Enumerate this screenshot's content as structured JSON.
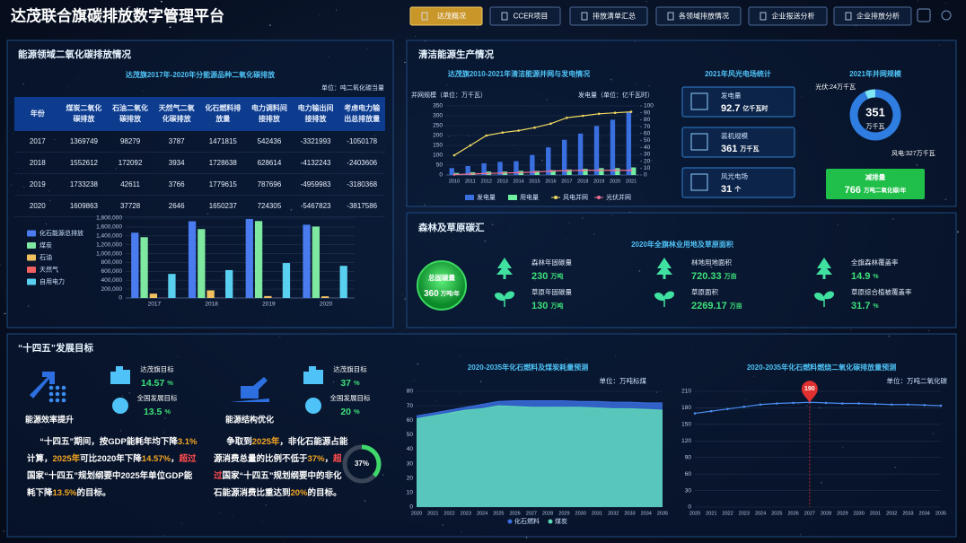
{
  "header": {
    "title": "达茂联合旗碳排放数字管理平台",
    "nav": [
      "达茂概况",
      "CCER项目",
      "排放清单汇总",
      "各领域排放情况",
      "企业报送分析",
      "企业排放分析"
    ]
  },
  "energy": {
    "title": "能源领域二氧化碳排放情况",
    "table": {
      "title": "达茂旗2017年-2020年分能源品种二氧化碳排放",
      "unit": "单位：吨二氧化碳当量",
      "columns": [
        "年份",
        "煤炭二氧化碳排放",
        "石油二氧化碳排放",
        "天然气二氧化碳排放",
        "化石燃料排放量",
        "电力调料间接排放",
        "电力输出间接排放",
        "考虑电力输出总排放量"
      ],
      "rows": [
        [
          2017,
          1369749,
          98279,
          3787,
          1471815,
          542436,
          -3321993,
          -1050178
        ],
        [
          2018,
          1552612,
          172092,
          3934,
          1728638,
          628614,
          -4132243,
          -2403606
        ],
        [
          2019,
          1733238,
          42611,
          3766,
          1779615,
          787696,
          -4959983,
          -3180368
        ],
        [
          2020,
          1609863,
          37728,
          2646,
          1650237,
          724305,
          -5467823,
          -3817586
        ]
      ]
    }
  },
  "clean": {
    "title": "清洁能源生产情况",
    "wind": {
      "title": "2021年风光电场统计",
      "items": [
        {
          "label": "发电量",
          "value": 92.7,
          "unit": "亿千瓦时"
        },
        {
          "label": "装机规模",
          "value": 361,
          "unit": "万千瓦"
        },
        {
          "label": "风光电场",
          "value": 31,
          "unit": "个"
        }
      ]
    },
    "reduction": {
      "label": "减排量",
      "value": 766,
      "unit": "万吨二氧化碳/年"
    }
  },
  "forest": {
    "title": "森林及草原碳汇",
    "subtitle": "2020年全旗林业用地及草原面积",
    "total": {
      "label": "总固碳量",
      "value": 360,
      "unit": "万吨/年"
    },
    "items": [
      {
        "label": "森林年固碳量",
        "value": 230,
        "unit": "万吨"
      },
      {
        "label": "林地用地面积",
        "value": 720.33,
        "unit": "万亩"
      },
      {
        "label": "全旗森林覆盖率",
        "value": 14.9,
        "unit": "%"
      },
      {
        "label": "草原年固碳量",
        "value": 130,
        "unit": "万吨"
      },
      {
        "label": "草原面积",
        "value": 2269.17,
        "unit": "万亩"
      },
      {
        "label": "草原综合植被覆盖率",
        "value": 31.7,
        "unit": "%"
      }
    ]
  },
  "goals": {
    "title": "“十四五”发展目标",
    "blocks": [
      {
        "name": "能源效率提升",
        "targets": [
          {
            "label": "达茂旗目标",
            "value": 14.57,
            "unit": "%"
          },
          {
            "label": "全国发展目标",
            "value": 13.5,
            "unit": "%"
          }
        ],
        "text": [
          {
            "text": "“十四五”期间，按GDP能耗年均下降",
            "color": "#ffffff"
          },
          {
            "text": "3.1%",
            "color": "#f5a623"
          },
          {
            "text": "计算，",
            "color": "#ffffff"
          },
          {
            "text": "2025年",
            "color": "#f5a623"
          },
          {
            "text": "可比2020年下降",
            "color": "#ffffff"
          },
          {
            "text": "14.57%",
            "color": "#f5a623"
          },
          {
            "text": "，",
            "color": "#ffffff"
          },
          {
            "text": "超过",
            "color": "#ff4d4f"
          },
          {
            "text": "国家“十四五”规划纲要中2025年单位GDP能耗下降",
            "color": "#ffffff"
          },
          {
            "text": "13.5%",
            "color": "#f5a623"
          },
          {
            "text": "的目标。",
            "color": "#ffffff"
          }
        ]
      },
      {
        "name": "能源结构优化",
        "targets": [
          {
            "label": "达茂旗目标",
            "value": 37,
            "unit": "%"
          },
          {
            "label": "全国发展目标",
            "value": 20,
            "unit": "%"
          }
        ],
        "text": [
          {
            "text": "争取到",
            "color": "#ffffff"
          },
          {
            "text": "2025年",
            "color": "#f5a623"
          },
          {
            "text": "，非化石能源占能源消费总量的比例不低于",
            "color": "#ffffff"
          },
          {
            "text": "37%",
            "color": "#f5a623"
          },
          {
            "text": "，",
            "color": "#ffffff"
          },
          {
            "text": "超过",
            "color": "#ff4d4f"
          },
          {
            "text": "国家“十四五”规划纲要中的非化石能源消费比重达到",
            "color": "#ffffff"
          },
          {
            "text": "20%",
            "color": "#f5a623"
          },
          {
            "text": "的目标。",
            "color": "#ffffff"
          }
        ]
      }
    ]
  },
  "chart_data": [
    {
      "type": "bar",
      "categories": [
        "2017",
        "2018",
        "2019",
        "2020"
      ],
      "ylim": [
        0,
        1800000
      ],
      "yticks": [
        0,
        {
          "value": 200000,
          "label": "200,000"
        },
        {
          "value": 400000,
          "label": "400,000"
        },
        {
          "value": 600000,
          "label": "600,000"
        },
        {
          "value": 800000,
          "label": "800,000"
        },
        {
          "value": 1000000,
          "label": "1,000,000"
        },
        {
          "value": 1200000,
          "label": "1,200,000"
        },
        {
          "value": 1400000,
          "label": "1,400,000"
        },
        {
          "value": 1600000,
          "label": "1,600,000"
        },
        {
          "value": 1800000,
          "label": "1,800,000"
        }
      ],
      "series": [
        {
          "name": "化石能源总排放",
          "color": "#4a7cf0",
          "values": [
            1471815,
            1728638,
            1779615,
            1650237
          ]
        },
        {
          "name": "煤炭",
          "color": "#7ee8a0",
          "values": [
            1369749,
            1552612,
            1733238,
            1609863
          ]
        },
        {
          "name": "石油",
          "color": "#f0c060",
          "values": [
            98279,
            172092,
            42611,
            37728
          ]
        },
        {
          "name": "天然气",
          "color": "#f06060",
          "values": [
            3787,
            3934,
            3766,
            2646
          ]
        },
        {
          "name": "自用电力",
          "color": "#5ad0f0",
          "values": [
            542436,
            628614,
            787696,
            724305
          ]
        }
      ]
    },
    {
      "type": "combo",
      "title": "达茂旗2010-2021年清洁能源并网与发电情况",
      "ylabel": "并网规模（单位：万千瓦）",
      "y2label": "发电量（单位：亿千瓦时）",
      "categories": [
        "2010",
        "2011",
        "2012",
        "2013",
        "2014",
        "2015",
        "2016",
        "2017",
        "2018",
        "2019",
        "2020",
        "2021"
      ],
      "ylim": [
        0,
        350
      ],
      "yticks": [
        0,
        50,
        100,
        150,
        200,
        250,
        300,
        350
      ],
      "y2lim": [
        0,
        100
      ],
      "y2ticks": [
        0,
        10,
        20,
        30,
        40,
        50,
        60,
        70,
        80,
        90,
        100
      ],
      "series": [
        {
          "name": "发电量",
          "type": "bar",
          "axis": "y2",
          "color": "#3a6fe0",
          "values": [
            10,
            13,
            17,
            19,
            20,
            29,
            40,
            51,
            60,
            71,
            80,
            91
          ]
        },
        {
          "name": "用电量",
          "type": "bar",
          "axis": "y2",
          "color": "#6ef0a0",
          "values": [
            3,
            4,
            5,
            5,
            6,
            6,
            7,
            8,
            9,
            10,
            10,
            11
          ]
        },
        {
          "name": "风电并网",
          "type": "line",
          "color": "#f0d860",
          "values": [
            100,
            150,
            200,
            215,
            225,
            240,
            260,
            290,
            300,
            310,
            315,
            320
          ]
        },
        {
          "name": "光伏并网",
          "type": "line",
          "color": "#f07090",
          "values": [
            2,
            5,
            8,
            10,
            12,
            15,
            20,
            22,
            24,
            24,
            24,
            24
          ]
        }
      ]
    },
    {
      "type": "pie",
      "title": "2021年并网规模",
      "center_value": 351,
      "center_unit": "万千瓦",
      "values": [
        24,
        327
      ],
      "value_labels": [
        "光伏:24万千瓦",
        "风电:327万千瓦"
      ],
      "colors": [
        "#7fe6f5",
        "#2f7de0"
      ]
    },
    {
      "type": "area",
      "title": "2020-2035年化石燃料及煤炭耗量预测",
      "unit": "单位：万吨标煤",
      "categories": [
        "2020",
        "2021",
        "2022",
        "2023",
        "2024",
        "2025",
        "2026",
        "2027",
        "2028",
        "2029",
        "2030",
        "2031",
        "2032",
        "2033",
        "2034",
        "2035"
      ],
      "ylim": [
        0,
        80
      ],
      "yticks": [
        0,
        10,
        20,
        30,
        40,
        50,
        60,
        70,
        80
      ],
      "series": [
        {
          "name": "化石燃料",
          "color": "#3a6fe0",
          "values": [
            63,
            65,
            67,
            69,
            71,
            73,
            73.5,
            73.5,
            73.5,
            73.5,
            73,
            73,
            72.5,
            72.5,
            72,
            72
          ]
        },
        {
          "name": "煤炭",
          "color": "#5fd8b8",
          "values": [
            61,
            63,
            65,
            67,
            68,
            70,
            69.5,
            69,
            69,
            69,
            69,
            68.5,
            68,
            68,
            67.5,
            67
          ]
        }
      ]
    },
    {
      "type": "line",
      "title": "2020-2035年化石燃料燃烧二氧化碳排放量预测",
      "unit": "单位：万吨二氧化碳",
      "categories": [
        "2020",
        "2021",
        "2022",
        "2023",
        "2024",
        "2025",
        "2026",
        "2027",
        "2028",
        "2029",
        "2030",
        "2031",
        "2032",
        "2033",
        "2034",
        "2035"
      ],
      "ylim": [
        0,
        210
      ],
      "yticks": [
        0,
        30,
        60,
        90,
        120,
        150,
        180,
        210
      ],
      "color": "#4a8cf0",
      "values": [
        170,
        174,
        178,
        182,
        186,
        188,
        189,
        190,
        189,
        188,
        188,
        187,
        186,
        186,
        185,
        184
      ]
    },
    {
      "type": "gauge",
      "ylim": [
        0,
        100
      ],
      "values": [
        37
      ],
      "value_labels": [
        "37%"
      ],
      "color": "#3fd86a"
    }
  ]
}
